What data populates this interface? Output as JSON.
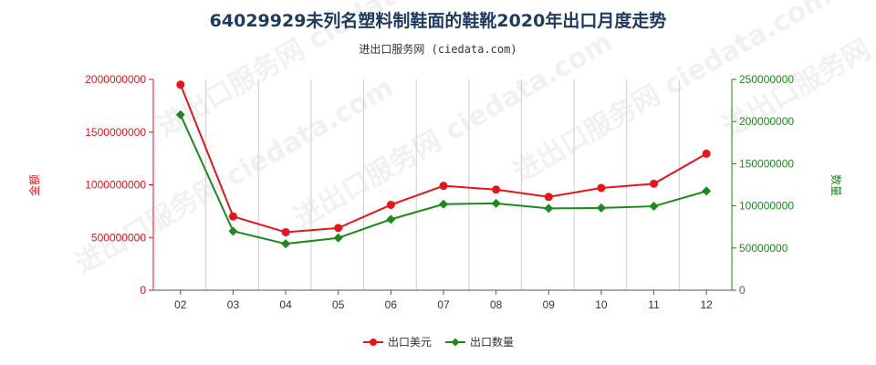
{
  "chart_data": {
    "type": "line",
    "title": "64029929未列名塑料制鞋面的鞋靴2020年出口月度走势",
    "subtitle": "进出口服务网 (ciedata.com)",
    "x": [
      "02",
      "03",
      "04",
      "05",
      "06",
      "07",
      "08",
      "09",
      "10",
      "11",
      "12"
    ],
    "y_left": {
      "label": "金额",
      "range": [
        0,
        2000000000
      ],
      "ticks": [
        "0",
        "500000000",
        "1000000000",
        "1500000000",
        "2000000000"
      ],
      "color": "#e8141c"
    },
    "y_right": {
      "label": "数量",
      "range": [
        0,
        250000000
      ],
      "ticks": [
        "0",
        "50000000",
        "100000000",
        "150000000",
        "200000000",
        "250000000"
      ],
      "color": "#1a8a1a"
    },
    "series": [
      {
        "name": "出口美元",
        "axis": "left",
        "color": "#e8141c",
        "values": [
          1950000000,
          700000000,
          550000000,
          590000000,
          810000000,
          990000000,
          955000000,
          885000000,
          970000000,
          1010000000,
          1295000000
        ]
      },
      {
        "name": "出口数量",
        "axis": "right",
        "color": "#1a8a1a",
        "values": [
          208000000,
          70000000,
          55000000,
          62000000,
          84000000,
          102000000,
          103000000,
          97000000,
          97500000,
          99500000,
          117500000
        ]
      }
    ],
    "grid": "vertical",
    "legend": "bottom-center"
  },
  "watermark": "进出口服务网 ciedata.com"
}
